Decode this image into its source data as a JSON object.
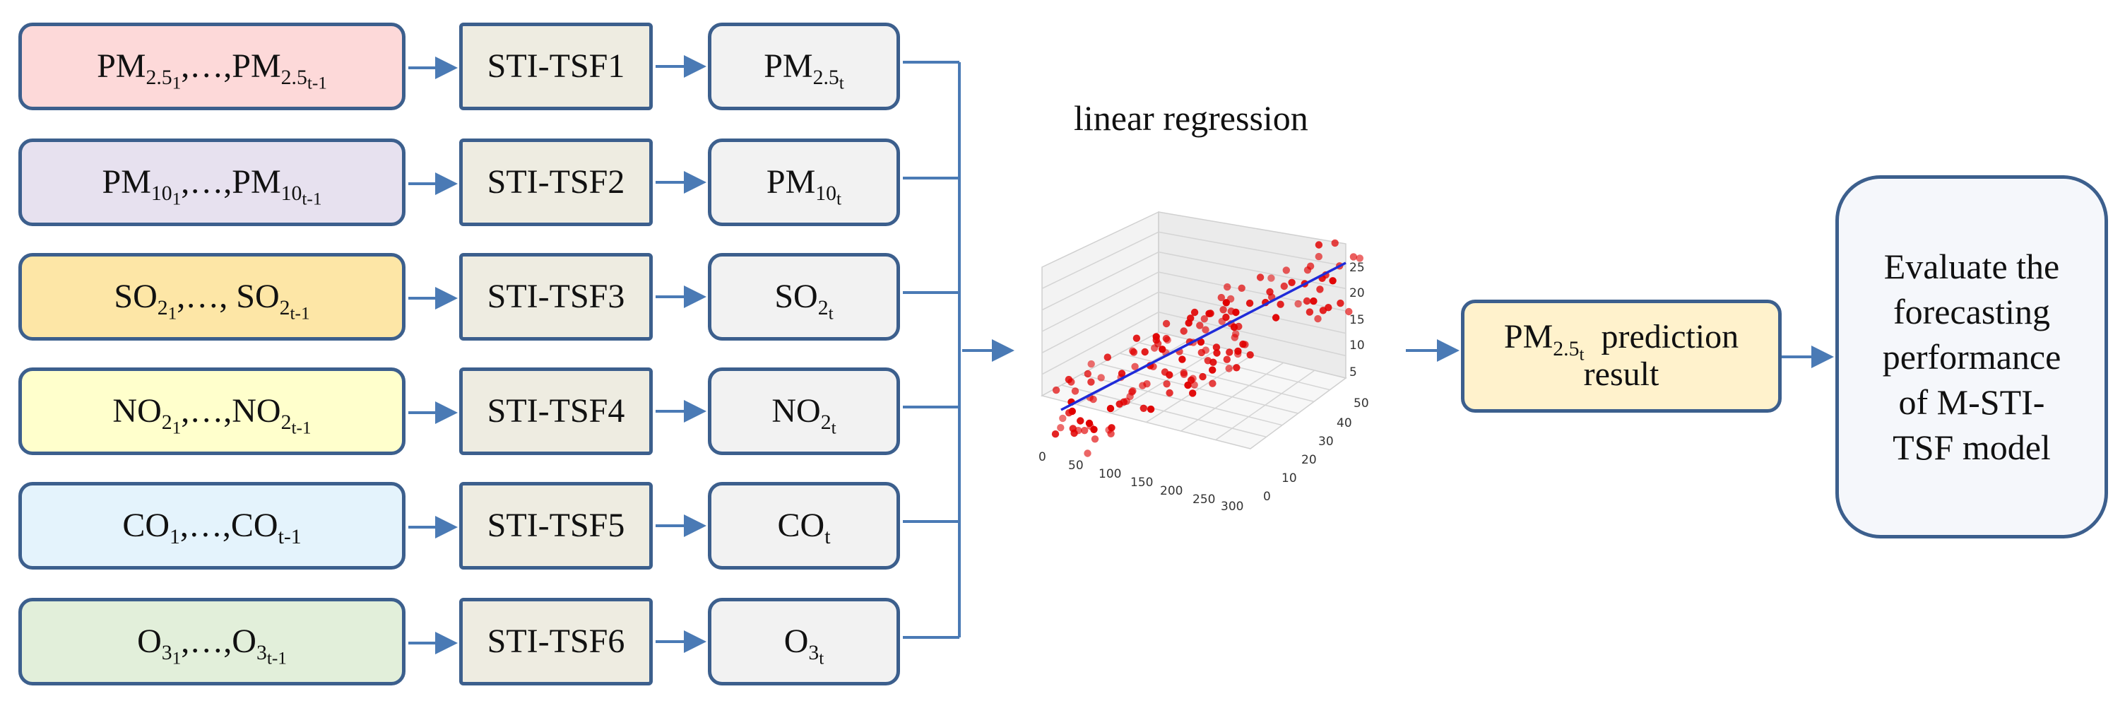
{
  "colors": {
    "stroke": "#3c5f8d",
    "arrow": "#4a7ab5",
    "model_fill": "#eeece1",
    "output_fill": "#f2f2f2",
    "input_fills": [
      "#fdd9d9",
      "#e7e1ef",
      "#fde6a6",
      "#ffffcc",
      "#e4f3fc",
      "#e2efda"
    ],
    "regression_line": "#1f2bd9",
    "points": "#e00000"
  },
  "rows": [
    {
      "input": {
        "first_base": "PM",
        "first_sub": "2.5",
        "first_subsub": "1",
        "sep": ",…,",
        "last_base": "PM",
        "last_sub": "2.5",
        "last_subsub": "t-1"
      },
      "model": "STI-TSF1",
      "output": {
        "base": "PM",
        "sub": "2.5",
        "subsub": "t"
      }
    },
    {
      "input": {
        "first_base": "PM",
        "first_sub": "10",
        "first_subsub": "1",
        "sep": ",…,",
        "last_base": "PM",
        "last_sub": "10",
        "last_subsub": "t-1"
      },
      "model": "STI-TSF2",
      "output": {
        "base": "PM",
        "sub": "10",
        "subsub": "t"
      }
    },
    {
      "input": {
        "first_base": "SO",
        "first_sub": "2",
        "first_subsub": "1",
        "sep": ",…, ",
        "last_base": "SO",
        "last_sub": "2",
        "last_subsub": "t-1"
      },
      "model": "STI-TSF3",
      "output": {
        "base": "SO",
        "sub": "2",
        "subsub": "t"
      }
    },
    {
      "input": {
        "first_base": "NO",
        "first_sub": "2",
        "first_subsub": "1",
        "sep": ",…,",
        "last_base": "NO",
        "last_sub": "2",
        "last_subsub": "t-1"
      },
      "model": "STI-TSF4",
      "output": {
        "base": "NO",
        "sub": "2",
        "subsub": "t"
      }
    },
    {
      "input": {
        "first_base": "CO",
        "first_sub": "1",
        "first_subsub": "",
        "sep": ",…,",
        "last_base": "CO",
        "last_sub": "t-1",
        "last_subsub": ""
      },
      "model": "STI-TSF5",
      "output": {
        "base": "CO",
        "sub": "t",
        "subsub": ""
      }
    },
    {
      "input": {
        "first_base": "O",
        "first_sub": "3",
        "first_subsub": "1",
        "sep": ",…,",
        "last_base": "O",
        "last_sub": "3",
        "last_subsub": "t-1"
      },
      "model": "STI-TSF6",
      "output": {
        "base": "O",
        "sub": "3",
        "subsub": "t"
      }
    }
  ],
  "regression": {
    "title": "linear regression",
    "x_ticks": [
      "0",
      "50",
      "100",
      "150",
      "200",
      "250",
      "300"
    ],
    "y_ticks": [
      "0",
      "10",
      "20",
      "30",
      "40",
      "50"
    ],
    "z_ticks": [
      "5",
      "10",
      "15",
      "20",
      "25"
    ]
  },
  "prediction": {
    "base": "PM",
    "sub": "2.5",
    "subsub": "t",
    "line1_suffix": "prediction",
    "line2": "result"
  },
  "evaluate": {
    "lines": [
      "Evaluate the",
      "forecasting",
      "performance",
      "of M-STI-",
      "TSF model"
    ]
  }
}
